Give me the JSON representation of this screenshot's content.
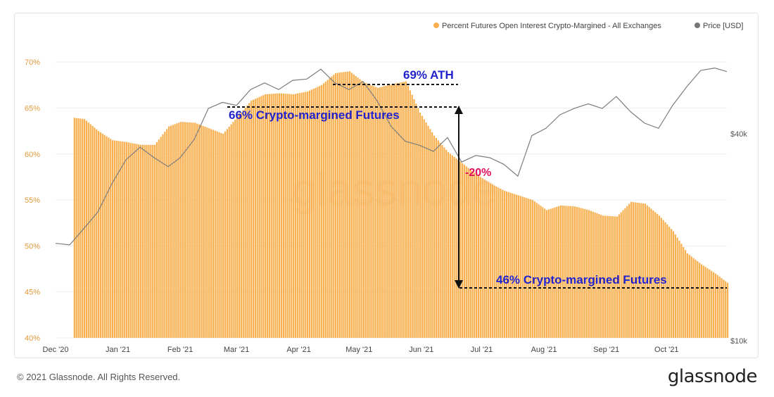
{
  "chart_data": {
    "type": "bar",
    "title": "",
    "xlabel": "",
    "ylabel": "",
    "legend_position": "top-right",
    "series": [
      {
        "name": "Percent Futures Open Interest Crypto-Margined - All Exchanges",
        "kind": "bar",
        "color": "#f7b04f",
        "x": [
          "2020-12-01",
          "2020-12-08",
          "2020-12-15",
          "2020-12-22",
          "2020-12-29",
          "2021-01-05",
          "2021-01-12",
          "2021-01-19",
          "2021-01-26",
          "2021-02-01",
          "2021-02-08",
          "2021-02-15",
          "2021-02-22",
          "2021-03-01",
          "2021-03-08",
          "2021-03-15",
          "2021-03-22",
          "2021-03-29",
          "2021-04-05",
          "2021-04-12",
          "2021-04-19",
          "2021-04-26",
          "2021-05-03",
          "2021-05-10",
          "2021-05-17",
          "2021-05-24",
          "2021-05-31",
          "2021-06-07",
          "2021-06-14",
          "2021-06-21",
          "2021-06-28",
          "2021-07-05",
          "2021-07-12",
          "2021-07-19",
          "2021-07-26",
          "2021-08-02",
          "2021-08-09",
          "2021-08-16",
          "2021-08-23",
          "2021-08-30",
          "2021-09-06",
          "2021-09-13",
          "2021-09-20",
          "2021-09-27",
          "2021-10-04",
          "2021-10-11",
          "2021-10-18",
          "2021-10-25",
          "2021-10-31"
        ],
        "values": [
          63.5,
          64.0,
          63.8,
          62.5,
          61.5,
          61.3,
          61.0,
          61.0,
          63.0,
          63.5,
          63.4,
          62.8,
          62.2,
          64.0,
          65.8,
          66.5,
          66.6,
          66.5,
          66.8,
          67.5,
          68.8,
          69.0,
          67.8,
          67.2,
          67.6,
          67.9,
          64.5,
          62.0,
          60.2,
          59.0,
          57.8,
          56.8,
          56.0,
          55.5,
          55.0,
          53.9,
          54.4,
          54.3,
          53.9,
          53.3,
          53.2,
          54.8,
          54.6,
          53.3,
          51.6,
          49.2,
          48.0,
          47.0,
          46.0
        ]
      },
      {
        "name": "Price [USD]",
        "kind": "line",
        "color": "#7d7d7d",
        "x": [
          "2020-12-01",
          "2020-12-08",
          "2020-12-15",
          "2020-12-22",
          "2020-12-29",
          "2021-01-05",
          "2021-01-12",
          "2021-01-19",
          "2021-01-26",
          "2021-02-01",
          "2021-02-08",
          "2021-02-15",
          "2021-02-22",
          "2021-03-01",
          "2021-03-08",
          "2021-03-15",
          "2021-03-22",
          "2021-03-29",
          "2021-04-05",
          "2021-04-12",
          "2021-04-19",
          "2021-04-26",
          "2021-05-03",
          "2021-05-10",
          "2021-05-17",
          "2021-05-24",
          "2021-05-31",
          "2021-06-07",
          "2021-06-14",
          "2021-06-21",
          "2021-06-28",
          "2021-07-05",
          "2021-07-12",
          "2021-07-19",
          "2021-07-26",
          "2021-08-02",
          "2021-08-09",
          "2021-08-16",
          "2021-08-23",
          "2021-08-30",
          "2021-09-06",
          "2021-09-13",
          "2021-09-20",
          "2021-09-27",
          "2021-10-04",
          "2021-10-11",
          "2021-10-18",
          "2021-10-25",
          "2021-10-31"
        ],
        "values": [
          19000,
          18800,
          21000,
          23500,
          28500,
          33500,
          36500,
          34000,
          32000,
          34000,
          38500,
          47500,
          49500,
          48500,
          54000,
          56500,
          54000,
          57500,
          58000,
          62000,
          56500,
          54000,
          57000,
          50000,
          42000,
          38000,
          37000,
          35500,
          39000,
          33000,
          34500,
          34000,
          32500,
          30000,
          39500,
          41500,
          45500,
          47500,
          49000,
          47500,
          51500,
          46500,
          43000,
          41500,
          48500,
          55000,
          61500,
          62500,
          61000
        ]
      }
    ],
    "y_axis_left": {
      "min": 40,
      "max": 73,
      "ticks": [
        "40%",
        "45%",
        "50%",
        "55%",
        "60%",
        "65%",
        "70%"
      ]
    },
    "y_axis_right": {
      "ticks": [
        "$10k",
        "$40k"
      ]
    },
    "x_ticks": [
      "Dec '20",
      "Jan '21",
      "Feb '21",
      "Mar '21",
      "Apr '21",
      "May '21",
      "Jun '21",
      "Jul '21",
      "Aug '21",
      "Sep '21",
      "Oct '21"
    ],
    "annotations": {
      "ath": "69% ATH",
      "start": "66% Crypto-margined Futures",
      "change": "-20%",
      "end": "46% Crypto-margined Futures"
    },
    "watermark": "glassnode"
  },
  "footer": {
    "copyright": "© 2021 Glassnode. All Rights Reserved.",
    "logo": "glassnode"
  },
  "colors": {
    "bar": "#f7b04f",
    "price": "#7d7d7d",
    "annotation_blue": "#2222cc",
    "annotation_pink": "#e0105c",
    "axis_text": "#e29a3c"
  }
}
